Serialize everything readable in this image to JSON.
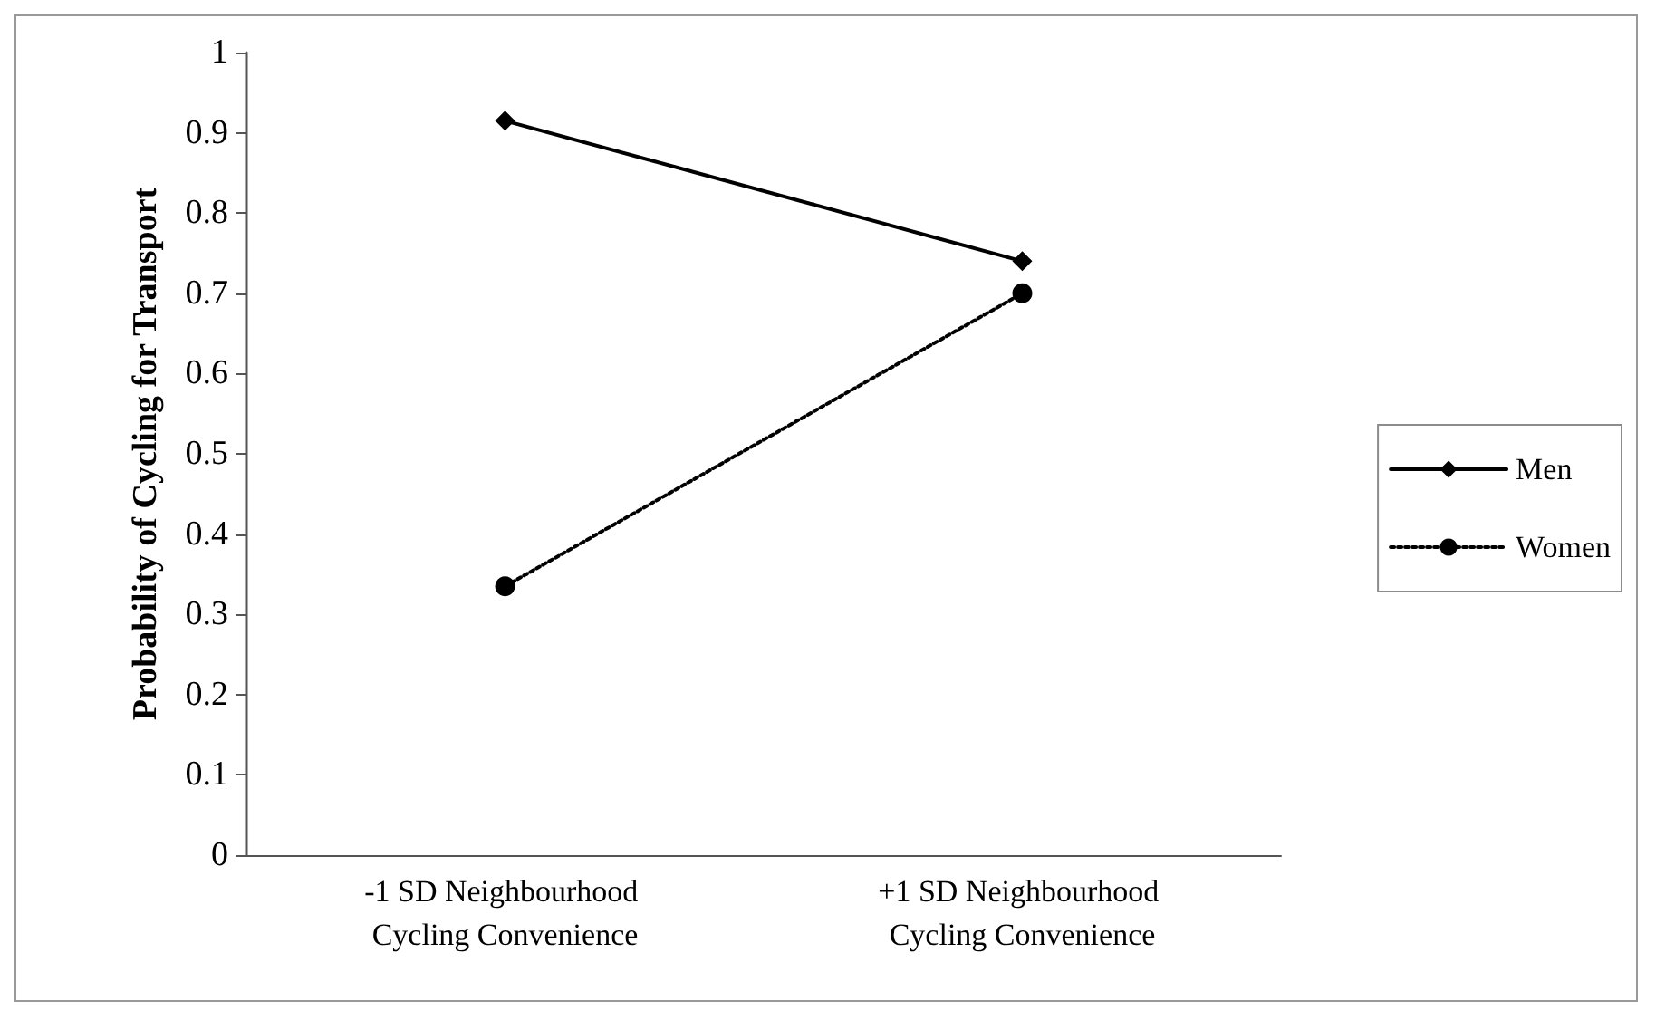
{
  "chart_data": {
    "type": "line",
    "ylabel": "Probability of Cycling for Transport",
    "categories": [
      "-1 SD Neighbourhood Cycling Convenience",
      "+1 SD Neighbourhood Cycling Convenience"
    ],
    "series": [
      {
        "name": "Men",
        "color": "#000000",
        "values": [
          0.915,
          0.74
        ],
        "marker": "diamond",
        "line_style": "solid"
      },
      {
        "name": "Women",
        "color": "#000000",
        "values": [
          0.335,
          0.7
        ],
        "marker": "circle",
        "line_style": "dotted"
      }
    ],
    "ylim": [
      0,
      1
    ],
    "yticks": [
      0,
      0.1,
      0.2,
      0.3,
      0.4,
      0.5,
      0.6,
      0.7,
      0.8,
      0.9,
      1
    ],
    "grid": false,
    "legend": "right"
  }
}
